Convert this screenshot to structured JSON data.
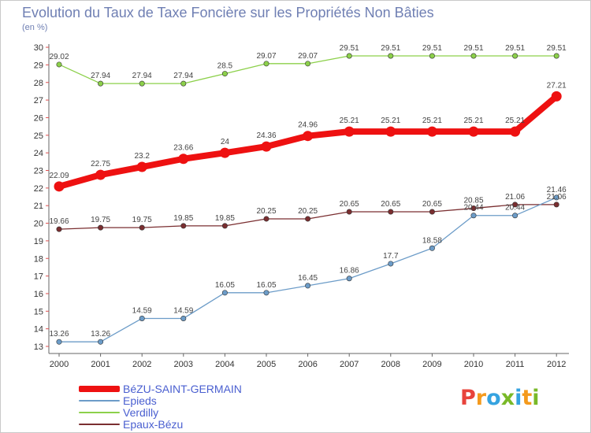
{
  "title": "Evolution du Taux de Taxe Foncière sur les Propriétés Non Bâties",
  "unit_label": "(en %)",
  "logo": {
    "text": "Proxiti",
    "letters": [
      {
        "ch": "P",
        "color": "#e8433b"
      },
      {
        "ch": "r",
        "color": "#f49a1d"
      },
      {
        "ch": "o",
        "color": "#35a3e0"
      },
      {
        "ch": "x",
        "color": "#79b928"
      },
      {
        "ch": "i",
        "color": "#35a3e0"
      },
      {
        "ch": "t",
        "color": "#f49a1d"
      },
      {
        "ch": "i",
        "color": "#79b928"
      }
    ]
  },
  "chart_data": {
    "type": "line",
    "title": "Evolution du Taux de Taxe Foncière sur les Propriétés Non Bâties",
    "ylabel": "(en %)",
    "xlabel": "",
    "x": [
      "2000",
      "2001",
      "2002",
      "2003",
      "2004",
      "2005",
      "2006",
      "2007",
      "2008",
      "2009",
      "2010",
      "2011",
      "2012"
    ],
    "yticks": [
      "13",
      "14",
      "15",
      "16",
      "17",
      "18",
      "19",
      "20",
      "21",
      "22",
      "23",
      "24",
      "25",
      "26",
      "27",
      "28",
      "29",
      "30"
    ],
    "ylim": [
      13,
      30
    ],
    "grid": false,
    "legend": "bottom-left",
    "series": [
      {
        "name": "BéZU-SAINT-GERMAIN",
        "color": "#ee1111",
        "values": [
          22.09,
          22.75,
          23.2,
          23.66,
          24,
          24.36,
          24.96,
          25.21,
          25.21,
          25.21,
          25.21,
          25.21,
          27.21
        ],
        "labels": [
          "22.09",
          "22.75",
          "23.2",
          "23.66",
          "24",
          "24.36",
          "24.96",
          "25.21",
          "25.21",
          "25.21",
          "25.21",
          "25.21",
          "27.21"
        ]
      },
      {
        "name": "Epieds",
        "color": "#6c9cc8",
        "values": [
          13.26,
          13.26,
          14.59,
          14.59,
          16.05,
          16.05,
          16.45,
          16.86,
          17.7,
          18.58,
          20.44,
          20.44,
          21.46
        ],
        "labels": [
          "13.26",
          "13.26",
          "14.59",
          "14.59",
          "16.05",
          "16.05",
          "16.45",
          "16.86",
          "17.7",
          "18.58",
          "20.44",
          "20.44",
          "21.46"
        ]
      },
      {
        "name": "Verdilly",
        "color": "#8cd04a",
        "values": [
          29.02,
          27.94,
          27.94,
          27.94,
          28.5,
          29.07,
          29.07,
          29.51,
          29.51,
          29.51,
          29.51,
          29.51,
          29.51
        ],
        "labels": [
          "29.02",
          "27.94",
          "27.94",
          "27.94",
          "28.5",
          "29.07",
          "29.07",
          "29.51",
          "29.51",
          "29.51",
          "29.51",
          "29.51",
          "29.51"
        ]
      },
      {
        "name": "Epaux-Bézu",
        "color": "#7a2e30",
        "values": [
          19.66,
          19.75,
          19.75,
          19.85,
          19.85,
          20.25,
          20.25,
          20.65,
          20.65,
          20.65,
          20.85,
          21.06,
          21.06
        ],
        "labels": [
          "19.66",
          "19.75",
          "19.75",
          "19.85",
          "19.85",
          "20.25",
          "20.25",
          "20.65",
          "20.65",
          "20.65",
          "20.85",
          "21.06",
          "21.06"
        ]
      }
    ]
  }
}
